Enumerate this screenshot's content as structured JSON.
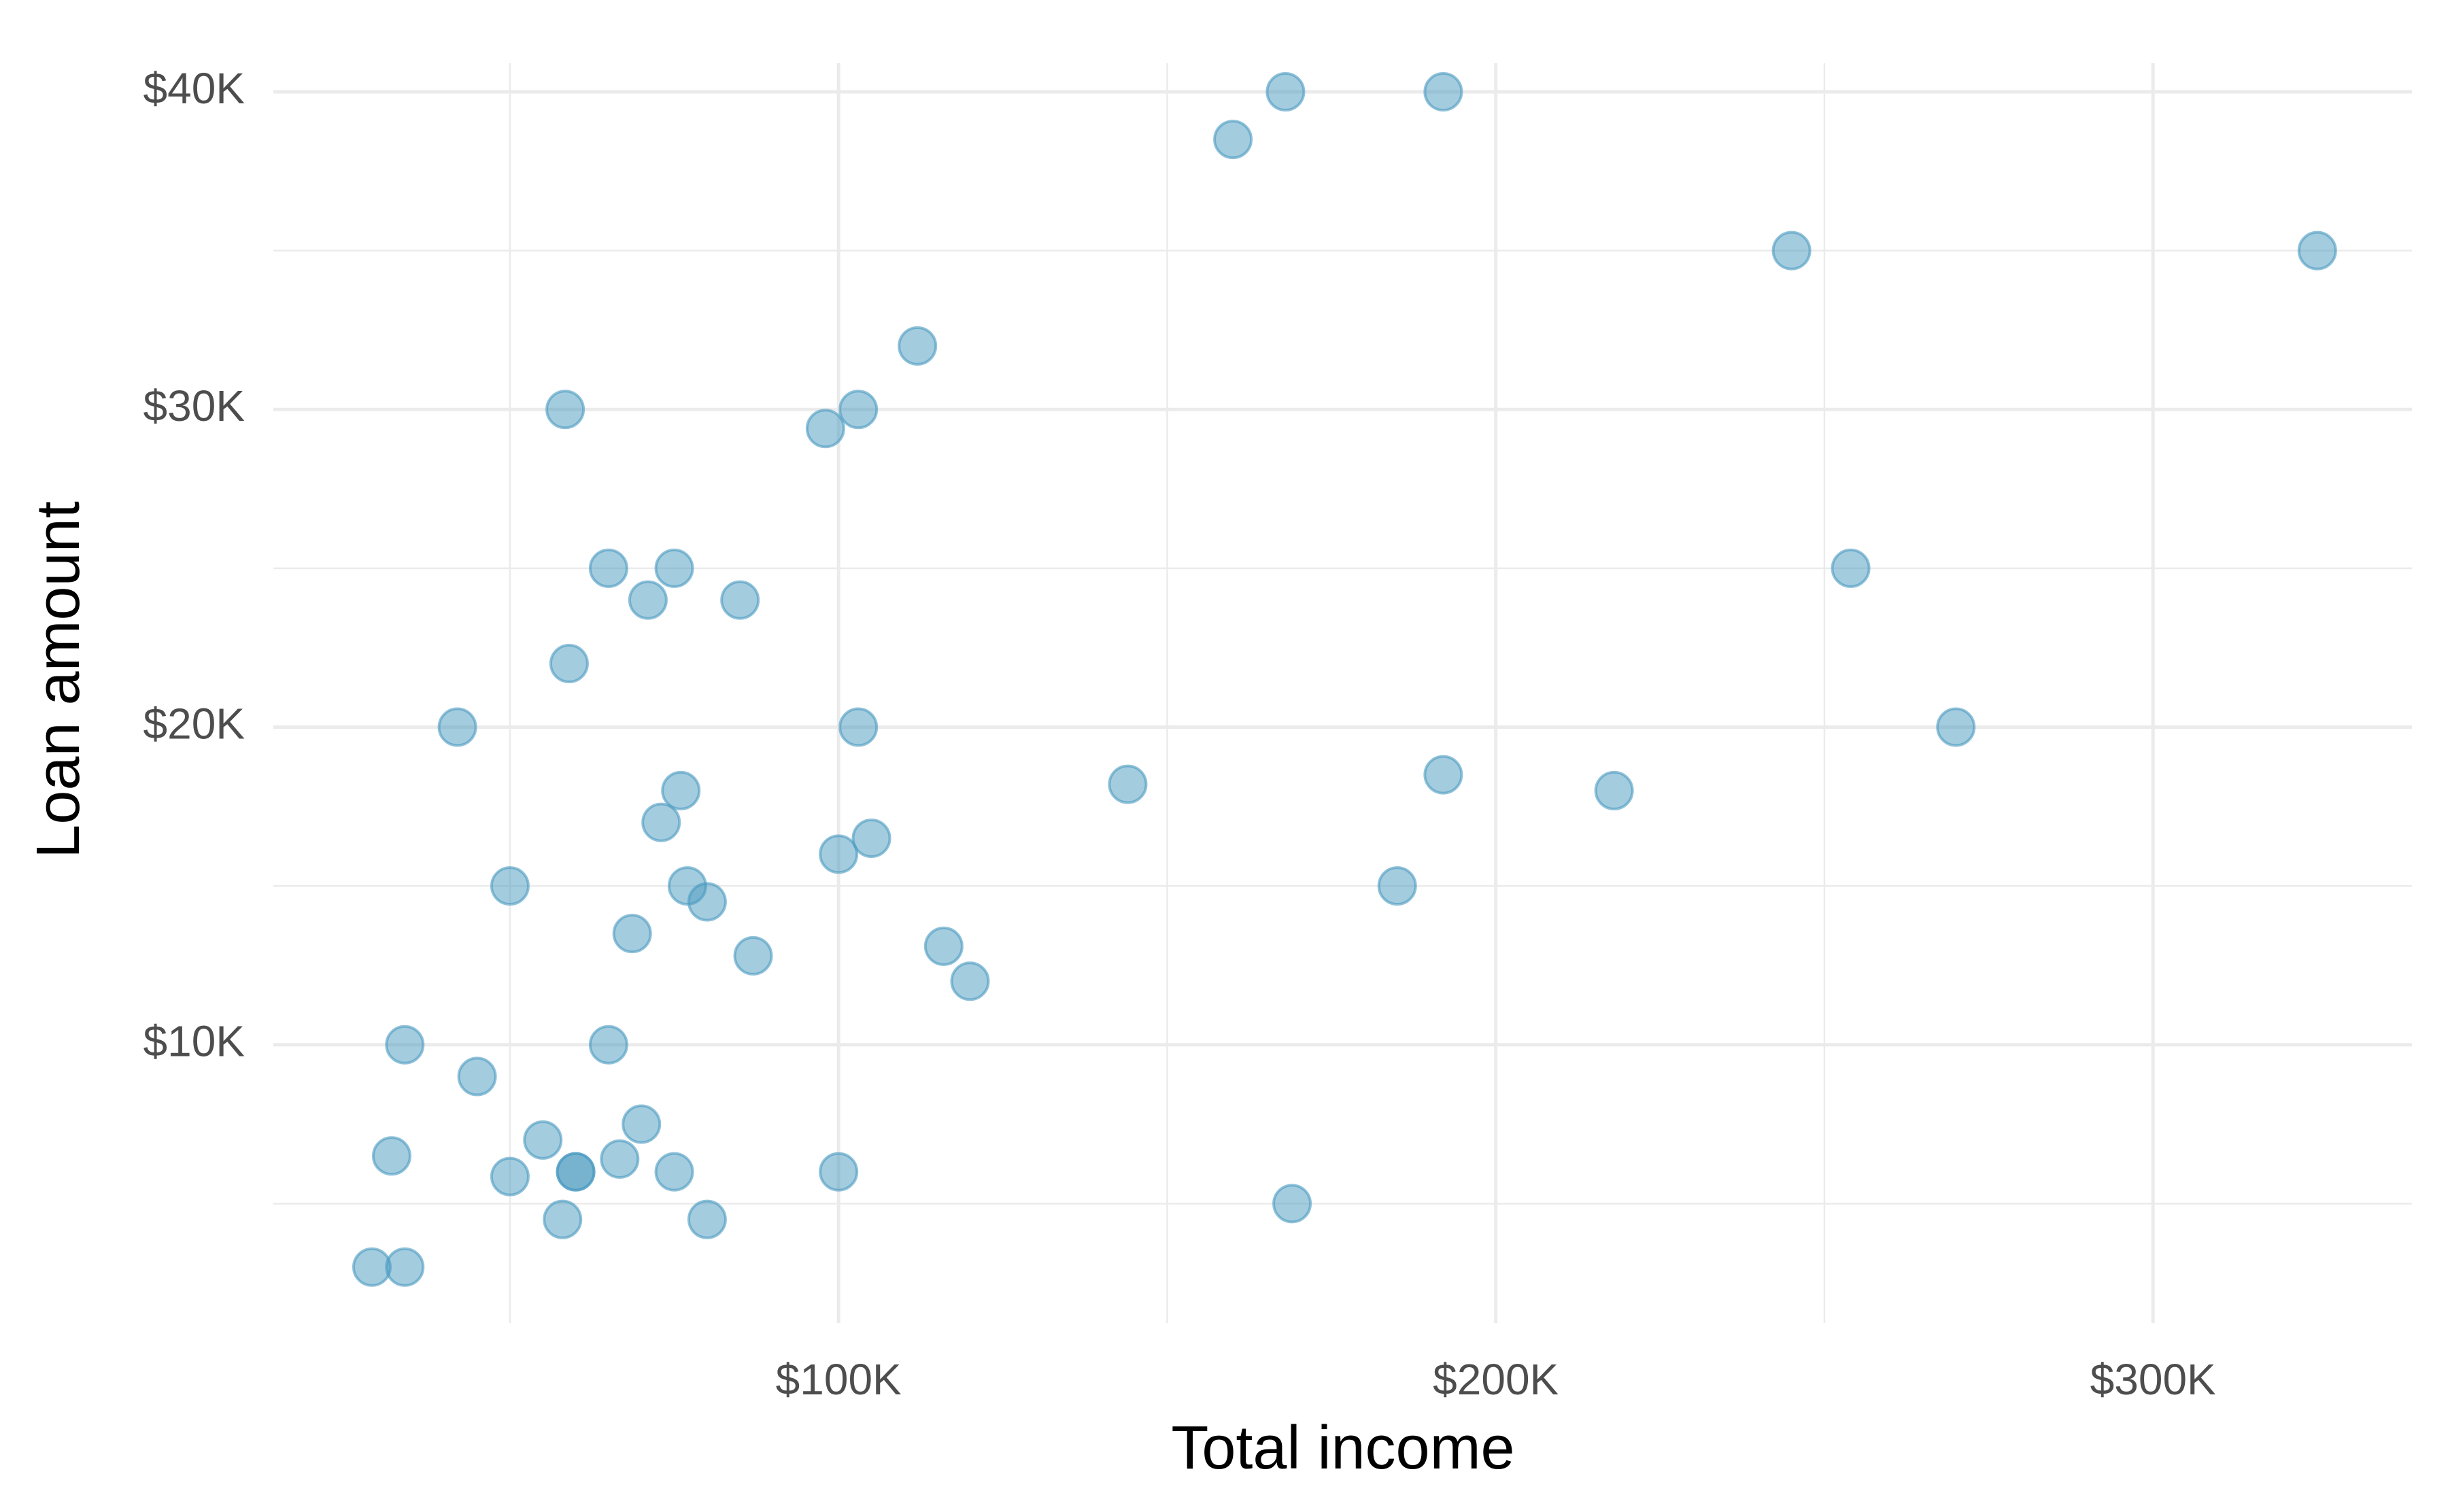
{
  "chart_data": {
    "type": "scatter",
    "xlabel": "Total income",
    "ylabel": "Loan amount",
    "color": "#4a9ac0",
    "x": [
      168000,
      192000,
      160000,
      245000,
      325000,
      112000,
      58400,
      103000,
      98000,
      65000,
      75000,
      254000,
      71000,
      85000,
      59000,
      42000,
      103000,
      270000,
      144000,
      192000,
      218000,
      76000,
      73000,
      105000,
      100000,
      50000,
      77000,
      185000,
      80000,
      68600,
      116000,
      87000,
      120000,
      34000,
      65000,
      45000,
      70000,
      55000,
      32000,
      66700,
      50000,
      60000,
      60000,
      75000,
      100000,
      169000,
      58000,
      80000,
      29000,
      34000
    ],
    "values": [
      40000,
      40000,
      38500,
      35000,
      35000,
      32000,
      30000,
      30000,
      29400,
      25000,
      25000,
      25000,
      24000,
      24000,
      22000,
      20000,
      20000,
      20000,
      18200,
      18500,
      18000,
      18000,
      17000,
      16500,
      16000,
      15000,
      15000,
      15000,
      14500,
      13500,
      13100,
      12800,
      12000,
      10000,
      10000,
      9000,
      7500,
      7000,
      6500,
      6400,
      5850,
      6000,
      6000,
      6000,
      6000,
      5000,
      4500,
      4500,
      3000,
      3000
    ],
    "xlim": [
      14000,
      339400
    ],
    "ylim": [
      1240,
      40900
    ],
    "xticks": [
      {
        "value": 100000,
        "label": "$100K"
      },
      {
        "value": 200000,
        "label": "$200K"
      },
      {
        "value": 300000,
        "label": "$300K"
      }
    ],
    "yticks": [
      {
        "value": 10000,
        "label": "$10K"
      },
      {
        "value": 20000,
        "label": "$20K"
      },
      {
        "value": 30000,
        "label": "$30K"
      },
      {
        "value": 40000,
        "label": "$40K"
      }
    ],
    "xminorticks": [
      50000,
      150000,
      250000
    ],
    "yminorticks": [
      5000,
      15000,
      25000,
      35000
    ],
    "grid": true
  }
}
